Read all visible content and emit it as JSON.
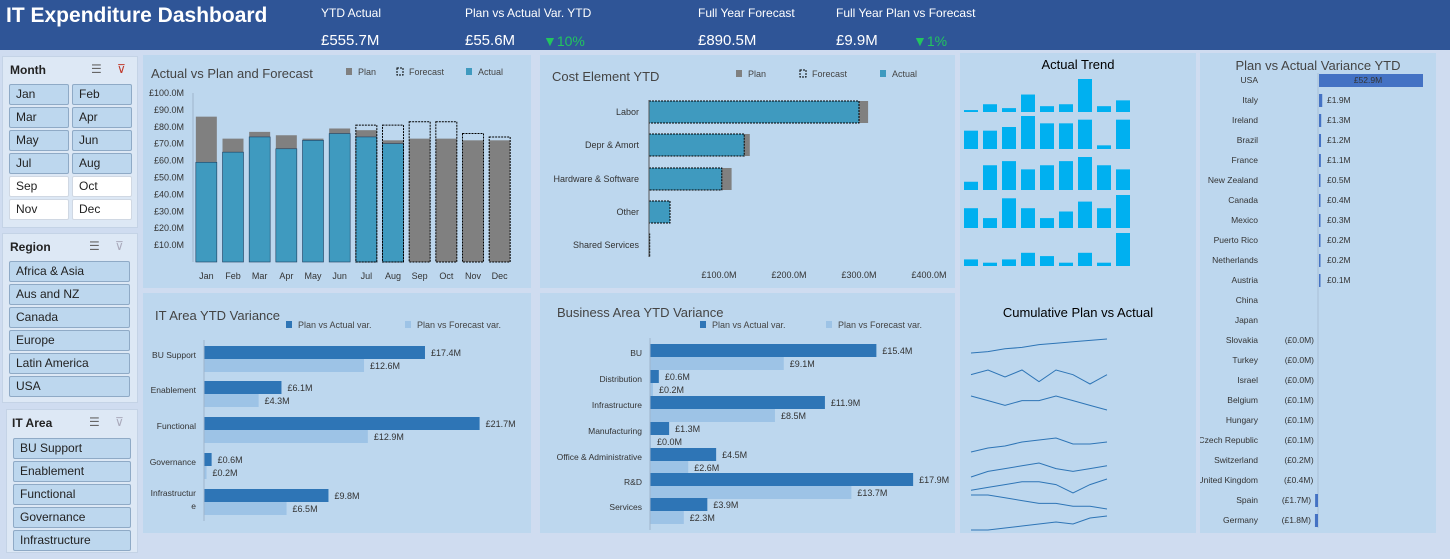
{
  "header": {
    "title": "IT Expenditure Dashboard",
    "kpis": [
      {
        "label": "YTD Actual",
        "value": "£555.7M"
      },
      {
        "label": "Plan vs Actual Var. YTD",
        "value": "£55.6M",
        "delta": "10%"
      },
      {
        "label": "Full Year Forecast",
        "value": "£890.5M"
      },
      {
        "label": "Full Year Plan vs Forecast",
        "value": "£9.9M",
        "delta": "1%"
      }
    ],
    "delta_color": "#22c55e"
  },
  "slicers": {
    "month": {
      "title": "Month",
      "items": [
        {
          "label": "Jan",
          "selected": true
        },
        {
          "label": "Feb",
          "selected": true
        },
        {
          "label": "Mar",
          "selected": true
        },
        {
          "label": "Apr",
          "selected": true
        },
        {
          "label": "May",
          "selected": true
        },
        {
          "label": "Jun",
          "selected": true
        },
        {
          "label": "Jul",
          "selected": true
        },
        {
          "label": "Aug",
          "selected": true
        },
        {
          "label": "Sep",
          "selected": false
        },
        {
          "label": "Oct",
          "selected": false
        },
        {
          "label": "Nov",
          "selected": false
        },
        {
          "label": "Dec",
          "selected": false
        }
      ]
    },
    "region": {
      "title": "Region",
      "items": [
        "Africa & Asia",
        "Aus and NZ",
        "Canada",
        "Europe",
        "Latin America",
        "USA"
      ]
    },
    "it_area": {
      "title": "IT Area",
      "items": [
        "BU Support",
        "Enablement",
        "Functional",
        "Governance",
        "Infrastructure"
      ]
    }
  },
  "icon_names": [
    "multi-select-icon",
    "clear-filter-icon",
    "triangle-down-icon"
  ],
  "colors": {
    "plan": "#808080",
    "actual": "#3f9abf",
    "header": "#2f5597",
    "dark_bar": "#2e75b6",
    "light_bar": "#9dc3e6",
    "trend": "#00b0f0",
    "line": "#2e75b6"
  },
  "chart_data": [
    {
      "id": "actual-plan-forecast",
      "type": "bar",
      "title": "Actual vs Plan and Forecast",
      "legend": [
        "Plan",
        "Forecast",
        "Actual"
      ],
      "categories": [
        "Jan",
        "Feb",
        "Mar",
        "Apr",
        "May",
        "Jun",
        "Jul",
        "Aug",
        "Sep",
        "Oct",
        "Nov",
        "Dec"
      ],
      "yticks": [
        "£10.0M",
        "£20.0M",
        "£30.0M",
        "£40.0M",
        "£50.0M",
        "£60.0M",
        "£70.0M",
        "£80.0M",
        "£90.0M",
        "£100.0M"
      ],
      "ylim": [
        0,
        100
      ],
      "series": [
        {
          "name": "Plan",
          "values": [
            86,
            73,
            77,
            75,
            73,
            79,
            78,
            72,
            73,
            73,
            72,
            72
          ]
        },
        {
          "name": "Forecast",
          "values": [
            null,
            null,
            null,
            null,
            null,
            null,
            81,
            81,
            83,
            83,
            76,
            74
          ]
        },
        {
          "name": "Actual",
          "values": [
            59,
            65,
            74,
            67,
            72,
            76,
            74,
            70,
            null,
            null,
            null,
            null
          ]
        }
      ]
    },
    {
      "id": "cost-element",
      "type": "bar",
      "title": "Cost Element YTD",
      "legend": [
        "Plan",
        "Forecast",
        "Actual"
      ],
      "categories": [
        "Labor",
        "Depr & Amort",
        "Hardware & Software",
        "Other",
        "Shared Services"
      ],
      "xticks": [
        "£100.0M",
        "£200.0M",
        "£300.0M",
        "£400.0M"
      ],
      "xlim": [
        0,
        430
      ],
      "series": [
        {
          "name": "Plan",
          "values": [
            313,
            144,
            118,
            30,
            1
          ]
        },
        {
          "name": "Forecast",
          "values": [
            300,
            136,
            104,
            30,
            1
          ]
        },
        {
          "name": "Actual",
          "values": [
            300,
            136,
            104,
            30,
            1
          ]
        }
      ]
    },
    {
      "id": "it-area-variance",
      "type": "bar",
      "title": "IT Area YTD Variance",
      "legend": [
        "Plan vs Actual var.",
        "Plan vs Forecast var."
      ],
      "categories": [
        "BU Support",
        "Enablement",
        "Functional",
        "Governance",
        "Infrastructure"
      ],
      "category_display": [
        [
          "BU Support"
        ],
        [
          "Enablement"
        ],
        [
          "Functional"
        ],
        [
          "Governance"
        ],
        [
          "Infrastructur",
          "e"
        ]
      ],
      "series": [
        {
          "name": "Plan vs Actual var.",
          "values": [
            17.4,
            6.1,
            21.7,
            0.6,
            9.8
          ],
          "labels": [
            "£17.4M",
            "£6.1M",
            "£21.7M",
            "£0.6M",
            "£9.8M"
          ]
        },
        {
          "name": "Plan vs Forecast var.",
          "values": [
            12.6,
            4.3,
            12.9,
            0.2,
            6.5
          ],
          "labels": [
            "£12.6M",
            "£4.3M",
            "£12.9M",
            "£0.2M",
            "£6.5M"
          ]
        }
      ]
    },
    {
      "id": "business-area-variance",
      "type": "bar",
      "title": "Business Area YTD Variance",
      "legend": [
        "Plan vs Actual var.",
        "Plan vs Forecast var."
      ],
      "categories": [
        "BU",
        "Distribution",
        "Infrastructure",
        "Manufacturing",
        "Office & Administrative",
        "R&D",
        "Services"
      ],
      "series": [
        {
          "name": "Plan vs Actual var.",
          "values": [
            15.4,
            0.6,
            11.9,
            1.3,
            4.5,
            17.9,
            3.9
          ],
          "labels": [
            "£15.4M",
            "£0.6M",
            "£11.9M",
            "£1.3M",
            "£4.5M",
            "£17.9M",
            "£3.9M"
          ]
        },
        {
          "name": "Plan vs Forecast var.",
          "values": [
            9.1,
            0.2,
            8.5,
            0.0,
            2.6,
            13.7,
            2.3
          ],
          "labels": [
            "£9.1M",
            "£0.2M",
            "£8.5M",
            "£0.0M",
            "£2.6M",
            "£13.7M",
            "£2.3M"
          ]
        }
      ]
    },
    {
      "id": "actual-trend",
      "type": "bar",
      "title": "Actual Trend",
      "series": [
        {
          "values": [
            1,
            4,
            2,
            9,
            3,
            4,
            17,
            3,
            6
          ]
        },
        {
          "values": [
            5,
            5,
            6,
            9,
            7,
            7,
            8,
            1,
            8
          ]
        },
        {
          "values": [
            2,
            6,
            7,
            5,
            6,
            7,
            8,
            6,
            5
          ]
        },
        {
          "values": [
            6,
            3,
            9,
            6,
            3,
            5,
            8,
            6,
            10
          ]
        },
        {
          "values": [
            2,
            1,
            2,
            4,
            3,
            1,
            4,
            1,
            10
          ]
        }
      ]
    },
    {
      "id": "cumulative-plan-actual",
      "type": "line",
      "title": "Cumulative Plan vs Actual",
      "series": [
        {
          "values": [
            2,
            3,
            5,
            6,
            8,
            9,
            10,
            11,
            12
          ]
        },
        {
          "values": [
            6,
            8,
            5,
            8,
            3,
            8,
            6,
            2,
            6
          ]
        },
        {
          "values": [
            7,
            6,
            5,
            6,
            6,
            7,
            6,
            5,
            4
          ]
        },
        {
          "values": [
            1,
            3,
            4,
            6,
            7,
            8,
            5,
            5,
            6
          ]
        },
        {
          "values": [
            2,
            4,
            5,
            6,
            7,
            5,
            4,
            5,
            6
          ]
        },
        {
          "values": [
            5,
            6,
            7,
            8,
            8,
            7,
            4,
            7,
            9
          ]
        },
        {
          "values": [
            7,
            7,
            6,
            5,
            4,
            4,
            3,
            3,
            2
          ]
        },
        {
          "values": [
            1,
            1,
            2,
            3,
            4,
            5,
            4,
            7,
            8
          ]
        }
      ]
    },
    {
      "id": "country-variance",
      "type": "bar",
      "title": "Plan vs Actual Variance YTD",
      "categories": [
        "USA",
        "Italy",
        "Ireland",
        "Brazil",
        "France",
        "New Zealand",
        "Canada",
        "Mexico",
        "Puerto Rico",
        "Netherlands",
        "Austria",
        "China",
        "Japan",
        "Slovakia",
        "Turkey",
        "Israel",
        "Belgium",
        "Hungary",
        "Czech Republic",
        "Switzerland",
        "United Kingdom",
        "Spain",
        "Germany"
      ],
      "values": [
        52.9,
        1.9,
        1.3,
        1.2,
        1.1,
        0.5,
        0.4,
        0.3,
        0.2,
        0.2,
        0.1,
        0,
        0,
        -0.0,
        -0.0,
        -0.0,
        -0.1,
        -0.1,
        -0.1,
        -0.2,
        -0.4,
        -1.7,
        -1.8
      ],
      "labels": [
        "£52.9M",
        "£1.9M",
        "£1.3M",
        "£1.2M",
        "£1.1M",
        "£0.5M",
        "£0.4M",
        "£0.3M",
        "£0.2M",
        "£0.2M",
        "£0.1M",
        "",
        "",
        "(£0.0M)",
        "(£0.0M)",
        "(£0.0M)",
        "(£0.1M)",
        "(£0.1M)",
        "(£0.1M)",
        "(£0.2M)",
        "(£0.4M)",
        "(£1.7M)",
        "(£1.8M)"
      ]
    }
  ]
}
